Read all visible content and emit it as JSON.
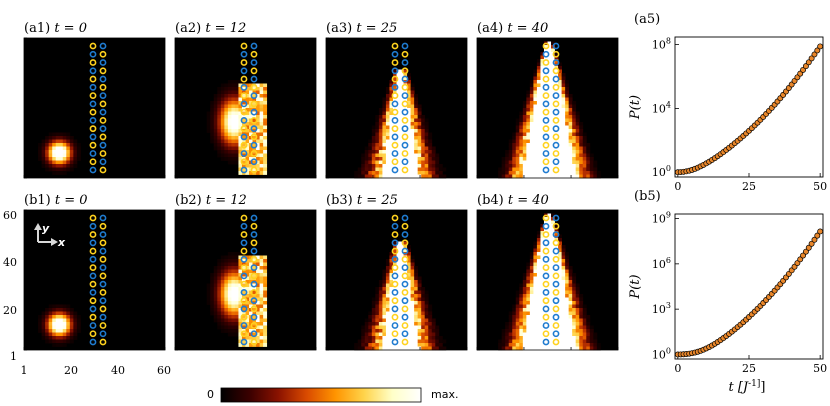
{
  "colors": {
    "yellow_site": "#ffd21e",
    "blue_site": "#1f7bd0",
    "marker_fill": "#e8862a",
    "marker_edge": "#000000",
    "colormap": [
      "#000000",
      "#3a0000",
      "#8a1200",
      "#d94a00",
      "#ff9400",
      "#ffd34a",
      "#ffffc8",
      "#ffffff"
    ]
  },
  "panels": [
    {
      "label": "(a1)",
      "time": "t = 0",
      "row": 0,
      "col": 0
    },
    {
      "label": "(a2)",
      "time": "t = 12",
      "row": 0,
      "col": 1
    },
    {
      "label": "(a3)",
      "time": "t = 25",
      "row": 0,
      "col": 2
    },
    {
      "label": "(a4)",
      "time": "t = 40",
      "row": 0,
      "col": 3
    },
    {
      "label": "(b1)",
      "time": "t = 0",
      "row": 1,
      "col": 0
    },
    {
      "label": "(b2)",
      "time": "t = 12",
      "row": 1,
      "col": 1
    },
    {
      "label": "(b3)",
      "time": "t = 25",
      "row": 1,
      "col": 2
    },
    {
      "label": "(b4)",
      "time": "t = 40",
      "row": 1,
      "col": 3
    }
  ],
  "heatmap_axes": {
    "x_ticks": [
      "1",
      "20",
      "40",
      "60"
    ],
    "y_ticks": [
      "1",
      "20",
      "40",
      "60"
    ],
    "axis_arrows": {
      "x": "x",
      "y": "y"
    }
  },
  "colorbar": {
    "min_label": "0",
    "max_label": "max."
  },
  "chart_data": [
    {
      "type": "scatter",
      "panel": "(a5)",
      "xlabel": "",
      "ylabel": "P(t)",
      "yscale": "log",
      "xlim": [
        -1,
        51
      ],
      "ylim": [
        0.5,
        300000000
      ],
      "x_ticks": [
        0,
        25,
        50
      ],
      "y_ticks": [
        {
          "value": 1,
          "label": "10^0"
        },
        {
          "value": 10000,
          "label": "10^4"
        },
        {
          "value": 100000000,
          "label": "10^8"
        }
      ],
      "x": [
        0,
        1,
        2,
        3,
        4,
        5,
        6,
        7,
        8,
        9,
        10,
        11,
        12,
        13,
        14,
        15,
        16,
        17,
        18,
        19,
        20,
        21,
        22,
        23,
        24,
        25,
        26,
        27,
        28,
        29,
        30,
        31,
        32,
        33,
        34,
        35,
        36,
        37,
        38,
        39,
        40,
        41,
        42,
        43,
        44,
        45,
        46,
        47,
        48,
        49,
        50
      ],
      "y": [
        1.0,
        1.02,
        1.06,
        1.13,
        1.24,
        1.4,
        1.62,
        1.92,
        2.33,
        2.87,
        3.59,
        4.56,
        5.87,
        7.65,
        10.1,
        13.5,
        18.2,
        24.8,
        34.0,
        47.1,
        65.7,
        92.4,
        131,
        187,
        270,
        393,
        577,
        854,
        1276,
        1922,
        2921,
        4480,
        6930,
        10820,
        17040,
        27100,
        43500,
        70500,
        115200,
        190000,
        316000,
        530000,
        893000,
        1517000,
        2598000,
        4484000,
        7800000,
        13670000,
        24140000,
        42940000,
        76900000
      ]
    },
    {
      "type": "scatter",
      "panel": "(b5)",
      "xlabel": "t [J^-1]",
      "ylabel": "P(t)",
      "yscale": "log",
      "xlim": [
        -1,
        51
      ],
      "ylim": [
        0.5,
        2000000000
      ],
      "x_ticks": [
        0,
        25,
        50
      ],
      "y_ticks": [
        {
          "value": 1,
          "label": "10^0"
        },
        {
          "value": 1000,
          "label": "10^3"
        },
        {
          "value": 1000000,
          "label": "10^6"
        },
        {
          "value": 1000000000,
          "label": "10^9"
        }
      ],
      "x": [
        0,
        1,
        2,
        3,
        4,
        5,
        6,
        7,
        8,
        9,
        10,
        11,
        12,
        13,
        14,
        15,
        16,
        17,
        18,
        19,
        20,
        21,
        22,
        23,
        24,
        25,
        26,
        27,
        28,
        29,
        30,
        31,
        32,
        33,
        34,
        35,
        36,
        37,
        38,
        39,
        40,
        41,
        42,
        43,
        44,
        45,
        46,
        47,
        48,
        49,
        50
      ],
      "y": [
        1.0,
        1.01,
        1.03,
        1.07,
        1.13,
        1.22,
        1.34,
        1.51,
        1.74,
        2.06,
        2.5,
        3.1,
        3.93,
        5.08,
        6.69,
        8.95,
        12.1,
        16.6,
        23.0,
        32.2,
        45.6,
        65.2,
        94.2,
        137.6,
        203,
        302,
        455,
        691,
        1060,
        1640,
        2560,
        4030,
        6410,
        10290,
        16680,
        27300,
        45100,
        75300,
        126900,
        216000,
        371000,
        644000,
        1128000,
        1995000,
        3560000,
        6410000,
        11650000,
        21370000,
        39570000,
        73970000,
        139600000
      ]
    }
  ]
}
